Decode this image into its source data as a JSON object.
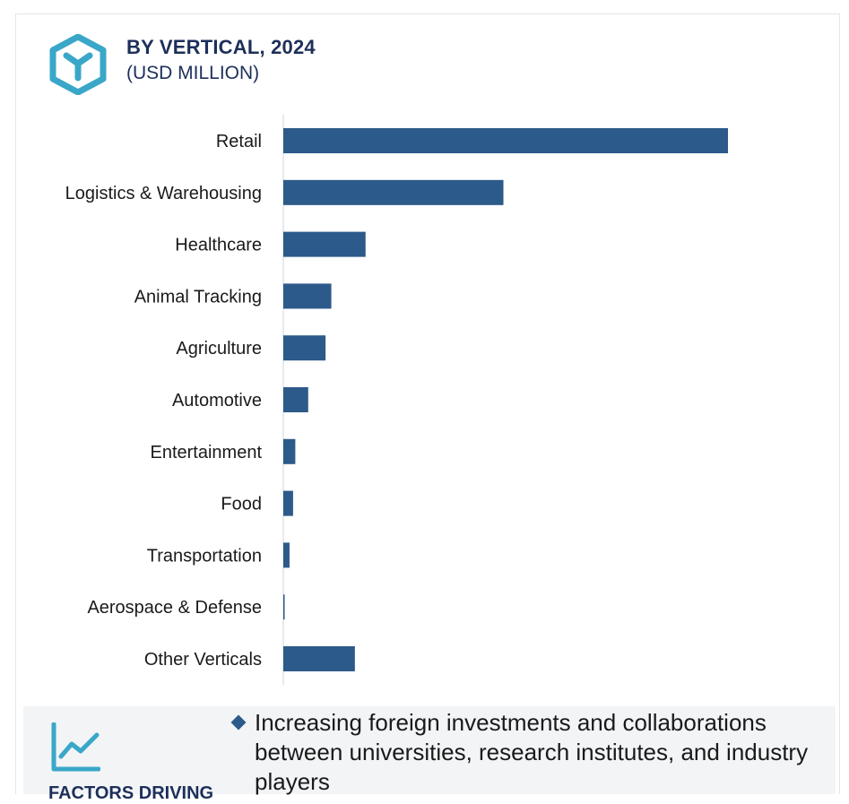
{
  "header": {
    "title": "BY VERTICAL, 2024",
    "subtitle": "(USD MILLION)"
  },
  "colors": {
    "bar": "#2c5a8a",
    "icon_teal": "#3aa7c9",
    "title": "#1d2f5a"
  },
  "icons": {
    "logo": "hexagon-y-logo-icon",
    "factors": "trend-chart-icon"
  },
  "chart_data": {
    "type": "bar",
    "orientation": "horizontal",
    "categories": [
      "Retail",
      "Logistics & Warehousing",
      "Healthcare",
      "Animal Tracking",
      "Agriculture",
      "Automotive",
      "Entertainment",
      "Food",
      "Transportation",
      "Aerospace & Defense",
      "Other Verticals"
    ],
    "values": [
      1000,
      495,
      185,
      108,
      95,
      56,
      27,
      22,
      14,
      2,
      161
    ],
    "title": "BY VERTICAL, 2024",
    "subtitle": "(USD MILLION)",
    "xlabel": "",
    "ylabel": "",
    "xlim": [
      0,
      1000
    ],
    "grid": false,
    "legend": "none"
  },
  "footer": {
    "heading": "FACTORS DRIVING",
    "bullet": "Increasing foreign investments and collaborations between universities, research institutes, and industry players"
  }
}
